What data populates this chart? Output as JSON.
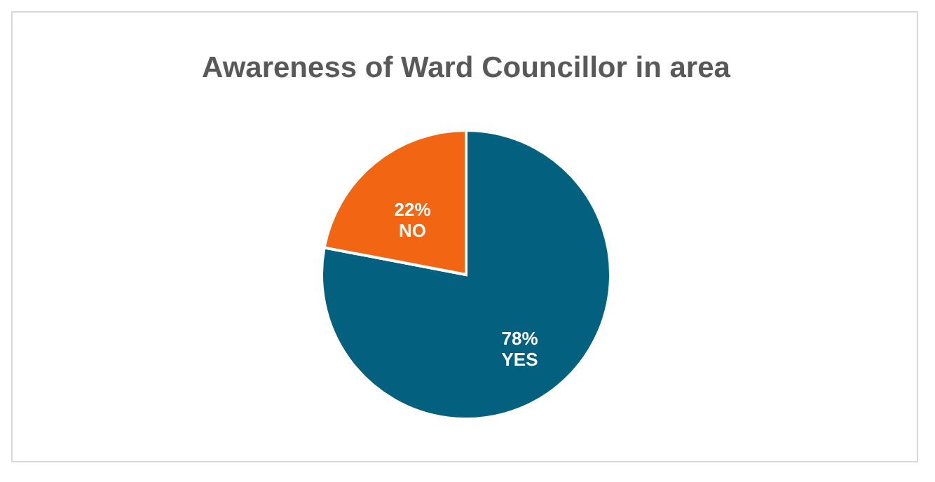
{
  "chart_data": {
    "type": "pie",
    "title": "Awareness of Ward Councillor in area",
    "categories": [
      "YES",
      "NO"
    ],
    "values": [
      78,
      22
    ],
    "colors": [
      "#03607f",
      "#f26513"
    ],
    "value_labels": [
      "78%",
      "22%"
    ],
    "legend": false
  }
}
